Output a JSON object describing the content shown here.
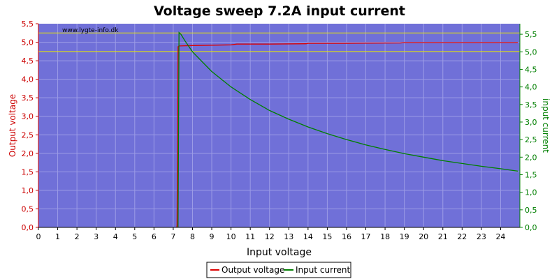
{
  "chart_data": {
    "type": "line",
    "title": "Voltage sweep 7.2A input current",
    "xlabel": "Input voltage",
    "ylabel_left": "Output voltage",
    "ylabel_right": "input current",
    "watermark": "www.lygte-info.dk",
    "xlim": [
      0,
      25
    ],
    "ylim_left": [
      0,
      5.5
    ],
    "ylim_right": [
      0,
      5.8
    ],
    "x_ticks": [
      "0",
      "1",
      "2",
      "3",
      "4",
      "5",
      "6",
      "7",
      "8",
      "9",
      "10",
      "11",
      "12",
      "13",
      "14",
      "15",
      "16",
      "17",
      "18",
      "19",
      "20",
      "21",
      "22",
      "23",
      "24"
    ],
    "y_left_ticks": [
      "0,0",
      "0,5",
      "1,0",
      "1,5",
      "2,0",
      "2,5",
      "3,0",
      "3,5",
      "4,0",
      "4,5",
      "5,0",
      "5,5"
    ],
    "y_right_ticks": [
      "0,0",
      "0,5",
      "1,0",
      "1,5",
      "2,0",
      "2,5",
      "3,0",
      "3,5",
      "4,0",
      "4,5",
      "5,0",
      "5,5"
    ],
    "reference_lines_left": [
      4.75,
      5.25
    ],
    "colors": {
      "plot_bg": "#7070d8",
      "grid": "#9c9ce6",
      "output_voltage": "#dd0000",
      "input_current": "#007f00",
      "reference": "#e8e800",
      "left_axis": "#cc0000",
      "right_axis": "#007f00"
    },
    "legend_position": "bottom",
    "series": [
      {
        "name": "Output voltage",
        "axis": "left",
        "points": [
          [
            7.18,
            0
          ],
          [
            7.2,
            0.05
          ],
          [
            7.25,
            4.88
          ],
          [
            7.3,
            4.9
          ],
          [
            8.0,
            4.91
          ],
          [
            9.0,
            4.92
          ],
          [
            10.0,
            4.93
          ],
          [
            10.3,
            4.95
          ],
          [
            12.0,
            4.95
          ],
          [
            13.9,
            4.96
          ],
          [
            14.0,
            4.97
          ],
          [
            16.0,
            4.97
          ],
          [
            18.8,
            4.98
          ],
          [
            19.0,
            4.99
          ],
          [
            22.0,
            4.99
          ],
          [
            24.9,
            4.99
          ]
        ]
      },
      {
        "name": "Input current",
        "axis": "right",
        "points": [
          [
            7.25,
            0
          ],
          [
            7.3,
            5.55
          ],
          [
            7.4,
            5.5
          ],
          [
            7.6,
            5.32
          ],
          [
            8.0,
            5.0
          ],
          [
            9.0,
            4.44
          ],
          [
            10.0,
            4.0
          ],
          [
            11.0,
            3.64
          ],
          [
            12.0,
            3.33
          ],
          [
            13.0,
            3.08
          ],
          [
            14.0,
            2.86
          ],
          [
            15.0,
            2.67
          ],
          [
            16.0,
            2.5
          ],
          [
            17.0,
            2.35
          ],
          [
            18.0,
            2.22
          ],
          [
            19.0,
            2.1
          ],
          [
            20.0,
            2.0
          ],
          [
            21.0,
            1.9
          ],
          [
            22.0,
            1.82
          ],
          [
            23.0,
            1.74
          ],
          [
            24.0,
            1.67
          ],
          [
            24.9,
            1.6
          ]
        ]
      }
    ]
  }
}
